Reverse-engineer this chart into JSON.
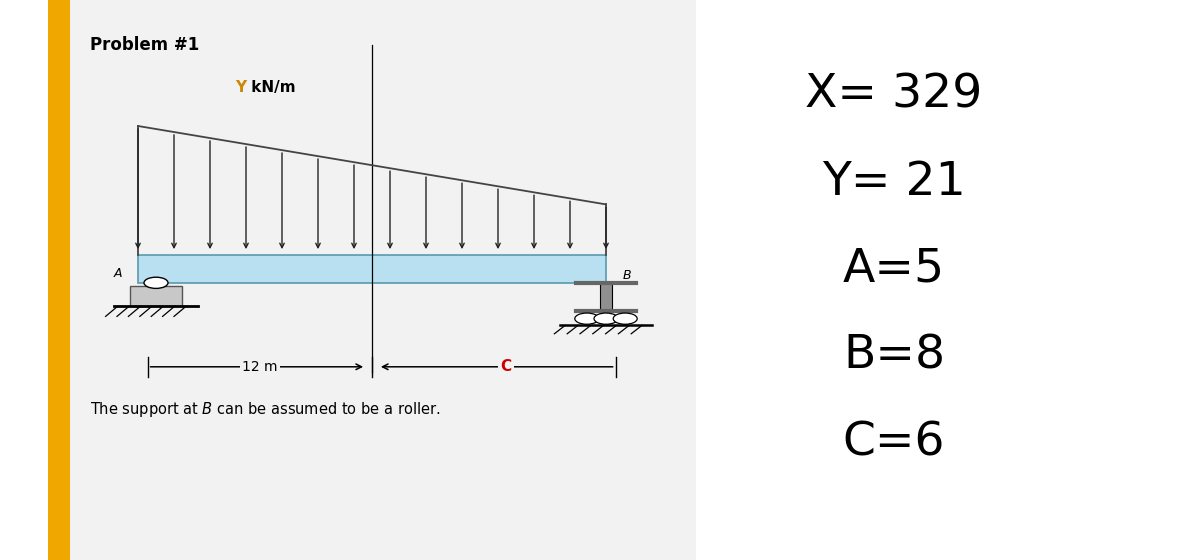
{
  "title": "Problem #1",
  "load_label_Y": "Y",
  "load_label_rest": " kN/m",
  "load_label_color_Y": "#cc8800",
  "load_label_color_rest": "#000000",
  "beam_color": "#add8e6",
  "beam_color2": "#b8e0f0",
  "beam_edge_color": "#5a9ab0",
  "arrow_color": "#222222",
  "support_text_note": "The support at $B$ can be assumed to be a roller.",
  "dim_label": "12 m",
  "dim_C_label": "C",
  "dim_C_color": "#cc0000",
  "results_X": "X= 329",
  "results_Y": "Y= 21",
  "results_A": "A=5",
  "results_B": "B=8",
  "results_C": "C=6",
  "results_fontsize": 34,
  "bg_color": "#ffffff",
  "left_bar_color": "#f0a800",
  "gray_bg_color": "#f0f0f0",
  "pin_color": "#c8c8c8",
  "roller_color": "#909090"
}
